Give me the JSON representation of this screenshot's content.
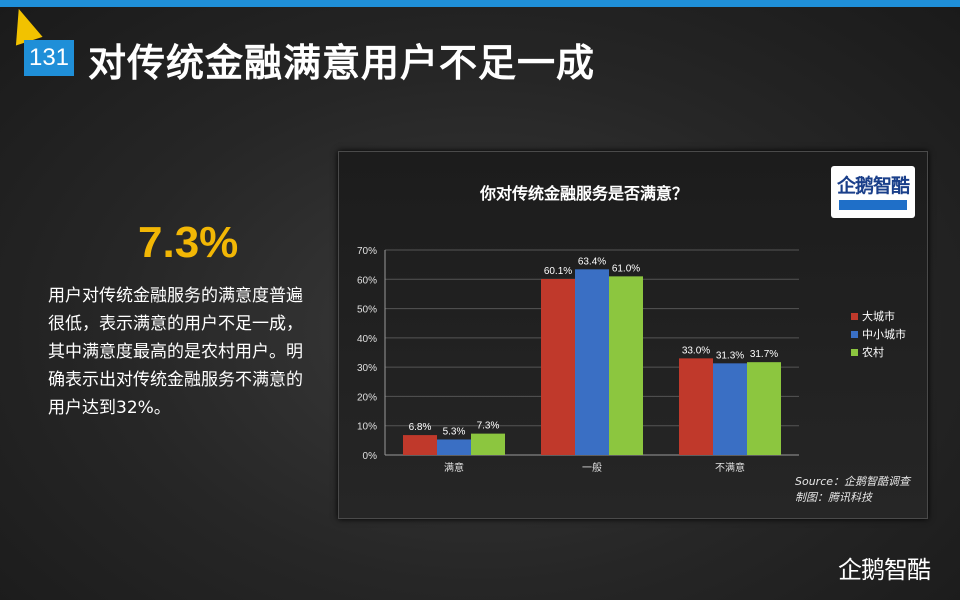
{
  "page": {
    "number": "131",
    "title": "对传统金融满意用户不足一成",
    "stat": "7.3%",
    "description": "用户对传统金融服务的满意度普遍很低，表示满意的用户不足一成，其中满意度最高的是农村用户。明确表示出对传统金融服务不满意的用户达到32%。",
    "brand": "企鹅智酷"
  },
  "logo": {
    "text": "企鹅智酷"
  },
  "source": {
    "line1": "Source：企鹅智酷调查",
    "line2": "制图：腾讯科技"
  },
  "colors": {
    "accent": "#1f8fd8",
    "stat": "#f2b705"
  },
  "chart_data": {
    "type": "bar",
    "title": "你对传统金融服务是否满意？",
    "categories": [
      "满意",
      "一般",
      "不满意"
    ],
    "series": [
      {
        "name": "大城市",
        "color": "#c0392b",
        "values": [
          6.8,
          60.1,
          33.0
        ],
        "labels": [
          "6.8%",
          "60.1%",
          "33.0%"
        ]
      },
      {
        "name": "中小城市",
        "color": "#3a6fc4",
        "values": [
          5.3,
          63.4,
          31.3
        ],
        "labels": [
          "5.3%",
          "63.4%",
          "31.3%"
        ]
      },
      {
        "name": "农村",
        "color": "#8cc63f",
        "values": [
          7.3,
          61.0,
          31.7
        ],
        "labels": [
          "7.3%",
          "61.0%",
          "31.7%"
        ]
      }
    ],
    "ylim": [
      0,
      70
    ],
    "yticks": [
      "0%",
      "10%",
      "20%",
      "30%",
      "40%",
      "50%",
      "60%",
      "70%"
    ],
    "grid": true,
    "legend": "right"
  }
}
